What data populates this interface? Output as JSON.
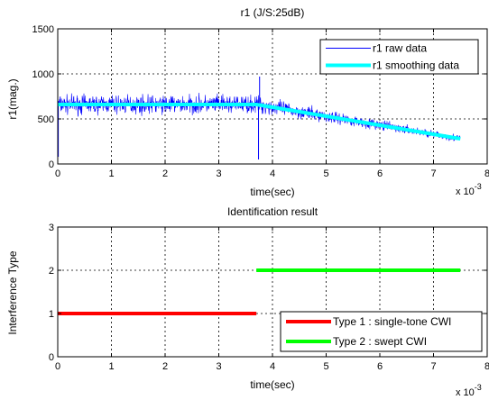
{
  "chart_data": [
    {
      "type": "line",
      "title": "r1 (J/S:25dB)",
      "xlabel": "time(sec)",
      "ylabel": "r1(mag.)",
      "x_exponent": "x 10",
      "x_exponent_power": "-3",
      "xlim": [
        0,
        8
      ],
      "ylim": [
        0,
        1500
      ],
      "xticks": [
        "0",
        "1",
        "2",
        "3",
        "4",
        "5",
        "6",
        "7",
        "8"
      ],
      "yticks": [
        "0",
        "500",
        "1000",
        "1500"
      ],
      "grid": true,
      "legend_position": "top-right",
      "series": [
        {
          "name": "r1 raw data",
          "color": "#0000ff",
          "style": "noisy",
          "x": [
            0,
            1,
            2,
            3,
            3.7,
            4.5,
            5.5,
            6.5,
            7.5
          ],
          "y": [
            660,
            660,
            660,
            660,
            660,
            580,
            480,
            380,
            280
          ],
          "noise_amplitude": [
            150,
            150,
            150,
            150,
            140,
            110,
            90,
            70,
            60
          ],
          "spikes": [
            {
              "x": 0.01,
              "y": 80
            },
            {
              "x": 3.74,
              "y": 50
            },
            {
              "x": 3.76,
              "y": 970
            }
          ]
        },
        {
          "name": "r1 smoothing data",
          "color": "#00ffff",
          "style": "thick",
          "x": [
            0,
            1,
            2,
            3,
            3.7,
            4.5,
            5.5,
            6.5,
            7.5
          ],
          "y": [
            660,
            660,
            660,
            660,
            660,
            580,
            480,
            380,
            280
          ]
        }
      ]
    },
    {
      "type": "line",
      "title": "Identification result",
      "xlabel": "time(sec)",
      "ylabel": "Interference Type",
      "x_exponent": "x 10",
      "x_exponent_power": "-3",
      "xlim": [
        0,
        8
      ],
      "ylim": [
        0,
        3
      ],
      "xticks": [
        "0",
        "1",
        "2",
        "3",
        "4",
        "5",
        "6",
        "7",
        "8"
      ],
      "yticks": [
        "0",
        "1",
        "2",
        "3"
      ],
      "grid": true,
      "legend_position": "bottom-right",
      "series": [
        {
          "name": "Type 1 : single-tone CWI",
          "color": "#ff0000",
          "x": [
            0,
            3.7
          ],
          "y": [
            1,
            1
          ]
        },
        {
          "name": "Type 2 : swept CWI",
          "color": "#00ff00",
          "x": [
            3.7,
            7.5
          ],
          "y": [
            2,
            2
          ]
        }
      ]
    }
  ]
}
